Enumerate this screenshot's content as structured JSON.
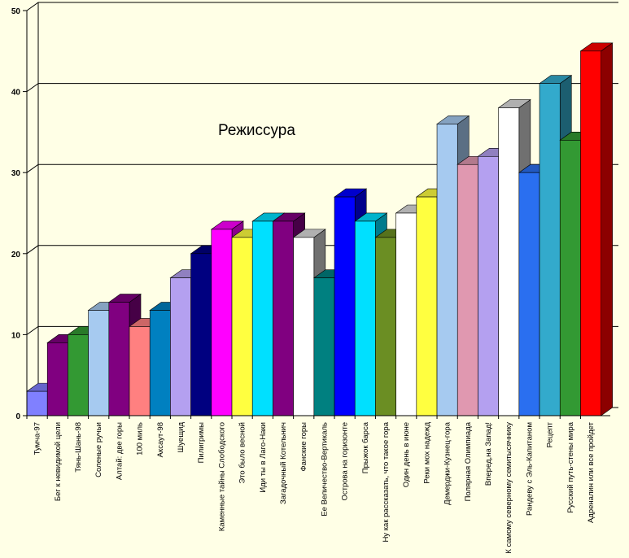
{
  "chart_data": {
    "type": "bar",
    "title": "Режиссура",
    "xlabel": "",
    "ylabel": "",
    "ylim": [
      0,
      50
    ],
    "yticks": [
      0,
      10,
      20,
      30,
      40,
      50
    ],
    "grid": true,
    "style": "3d",
    "categories": [
      "Тумча-97",
      "Бег к невидимой цели",
      "Тянь-Шань-98",
      "Соленые ручьи",
      "Алтай: две горы",
      "100 миль",
      "Аксаут-98",
      "Шуещид",
      "Пилигримы",
      "Каменные тайны Слободского",
      "Это было весной",
      "Иди ты в Лаго-Наки",
      "Загадочный Котельнич",
      "Фанские горы",
      "Ее Величество-Вертикаль",
      "Острова на горизонте",
      "Прыжок барса",
      "Ну как рассказать, что такое гора",
      "Один день в июне",
      "Реки мох надежд",
      "Демерджи-Кузнец-гора",
      "Полярная Олимпиада",
      "Вперед,на Запад!",
      "К самому северному семитысячнику",
      "Рандеву с Эль-Капитаном",
      "Рецепт",
      "Русский путь-стены мира",
      "Адреналин или все пройдет"
    ],
    "values": [
      3,
      9,
      10,
      13,
      14,
      11,
      13,
      17,
      20,
      23,
      22,
      24,
      24,
      22,
      17,
      27,
      24,
      22,
      25,
      27,
      36,
      31,
      32,
      38,
      30,
      41,
      34,
      45
    ],
    "colors": [
      "#8080ff",
      "#800080",
      "#339933",
      "#a6caf0",
      "#800080",
      "#ff8080",
      "#0080c0",
      "#b4a0f0",
      "#000080",
      "#ff00ff",
      "#ffff40",
      "#00e0ff",
      "#800080",
      "#ffffff",
      "#008080",
      "#0000ff",
      "#00e0ff",
      "#6b8e23",
      "#ffffff",
      "#ffff40",
      "#a6caf0",
      "#e098b0",
      "#b4a0f0",
      "#ffffff",
      "#2a6ff0",
      "#33aacc",
      "#339933",
      "#ff0000"
    ]
  }
}
